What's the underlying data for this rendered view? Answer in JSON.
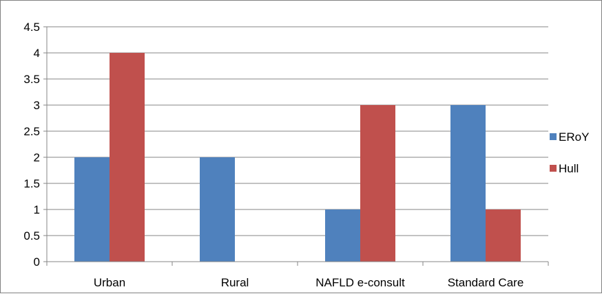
{
  "chart_data": {
    "type": "bar",
    "categories": [
      "Urban",
      "Rural",
      "NAFLD e-consult",
      "Standard Care"
    ],
    "series": [
      {
        "name": "ERoY",
        "color": "#4F81BD",
        "values": [
          2,
          2,
          1,
          3
        ]
      },
      {
        "name": "Hull",
        "color": "#C0504D",
        "values": [
          4,
          0,
          3,
          1
        ]
      }
    ],
    "y_ticks": [
      "0",
      "0.5",
      "1",
      "1.5",
      "2",
      "2.5",
      "3",
      "3.5",
      "4",
      "4.5"
    ],
    "ylim": [
      0,
      4.5
    ],
    "grid": "horizontal",
    "legend_position": "right",
    "title": "",
    "xlabel": "",
    "ylabel": ""
  }
}
